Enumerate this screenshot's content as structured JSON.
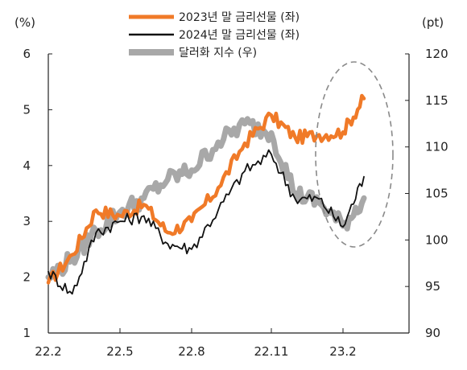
{
  "chart_data": {
    "type": "line",
    "title": "",
    "x_ticks": [
      "22.2",
      "22.5",
      "22.8",
      "22.11",
      "23.2"
    ],
    "y_left": {
      "unit": "(%)",
      "range": [
        1,
        6
      ],
      "ticks": [
        "1",
        "2",
        "3",
        "4",
        "5",
        "6"
      ]
    },
    "y_right": {
      "unit": "(pt)",
      "range": [
        90,
        120
      ],
      "ticks": [
        "90",
        "95",
        "100",
        "105",
        "110",
        "115",
        "120"
      ]
    },
    "grid": false,
    "legend_position": "top-center",
    "highlight": "dashed-ellipse-around-latest-period",
    "series": [
      {
        "name": "2023년 말 금리선물 (좌)",
        "axis": "left",
        "color": "#f07a28",
        "x": [
          "22.2",
          "22.3",
          "22.4",
          "22.5",
          "22.6",
          "22.7",
          "22.8",
          "22.9",
          "22.10",
          "22.11",
          "22.12",
          "23.1",
          "23.2",
          "23.3"
        ],
        "y": [
          1.9,
          2.4,
          3.2,
          3.1,
          3.3,
          2.8,
          3.0,
          3.6,
          4.4,
          4.9,
          4.5,
          4.55,
          4.6,
          5.2
        ]
      },
      {
        "name": "2024년 말 금리선물 (좌)",
        "axis": "left",
        "color": "#111111",
        "x": [
          "22.2",
          "22.3",
          "22.4",
          "22.5",
          "22.6",
          "22.7",
          "22.8",
          "22.9",
          "22.10",
          "22.11",
          "22.12",
          "23.1",
          "23.2",
          "23.3"
        ],
        "y": [
          2.1,
          1.7,
          2.8,
          3.0,
          3.1,
          2.6,
          2.5,
          3.2,
          3.9,
          4.2,
          3.4,
          3.4,
          2.9,
          3.8
        ]
      },
      {
        "name": "달러화 지수 (우)",
        "axis": "right",
        "color": "#a8a8a8",
        "x": [
          "22.2",
          "22.3",
          "22.4",
          "22.5",
          "22.6",
          "22.7",
          "22.8",
          "22.9",
          "22.10",
          "22.11",
          "22.12",
          "23.1",
          "23.2",
          "23.3"
        ],
        "y": [
          96.0,
          98.0,
          101.0,
          103.0,
          104.5,
          106.5,
          107.5,
          110.5,
          112.5,
          111.5,
          105.0,
          104.0,
          101.5,
          104.5
        ]
      }
    ]
  }
}
